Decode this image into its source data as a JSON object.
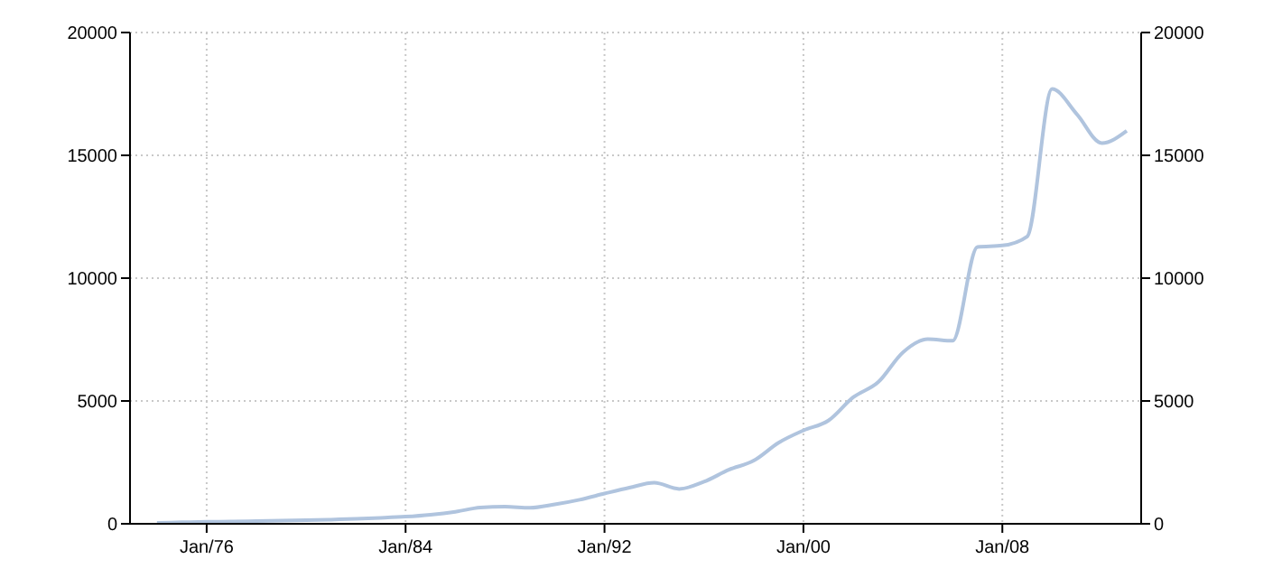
{
  "chart_data": {
    "type": "line",
    "x": [
      "1974",
      "1975",
      "1976",
      "1977",
      "1978",
      "1979",
      "1980",
      "1981",
      "1982",
      "1983",
      "1984",
      "1985",
      "1986",
      "1987",
      "1988",
      "1989",
      "1990",
      "1991",
      "1992",
      "1993",
      "1994",
      "1995",
      "1996",
      "1997",
      "1998",
      "1999",
      "2000",
      "2001",
      "2002",
      "2003",
      "2004",
      "2005",
      "2006",
      "2007",
      "2008",
      "2009",
      "2010",
      "2011",
      "2012",
      "2013"
    ],
    "series": [
      {
        "color": "#b0c4de",
        "values": [
          40,
          60,
          80,
          90,
          110,
          130,
          150,
          170,
          200,
          240,
          290,
          370,
          490,
          660,
          700,
          650,
          790,
          980,
          1230,
          1470,
          1670,
          1420,
          1710,
          2200,
          2570,
          3300,
          3800,
          4200,
          5150,
          5760,
          6980,
          7520,
          7450,
          11270,
          11330,
          11700,
          17700,
          16670,
          15500,
          16000
        ]
      }
    ],
    "xlim": [
      "1972-12",
      "2013-08"
    ],
    "xticks": [
      {
        "value": "1976-01",
        "label": "Jan/76"
      },
      {
        "value": "1984-01",
        "label": "Jan/84"
      },
      {
        "value": "1992-01",
        "label": "Jan/92"
      },
      {
        "value": "2000-01",
        "label": "Jan/00"
      },
      {
        "value": "2008-01",
        "label": "Jan/08"
      }
    ],
    "ylim": [
      0,
      20000
    ],
    "yticks": [
      0,
      5000,
      10000,
      15000,
      20000
    ],
    "y2lim": [
      0,
      20000
    ],
    "y2ticks": [
      0,
      5000,
      10000,
      15000,
      20000
    ],
    "grid": true,
    "line_style": "solid",
    "marker": "none"
  }
}
